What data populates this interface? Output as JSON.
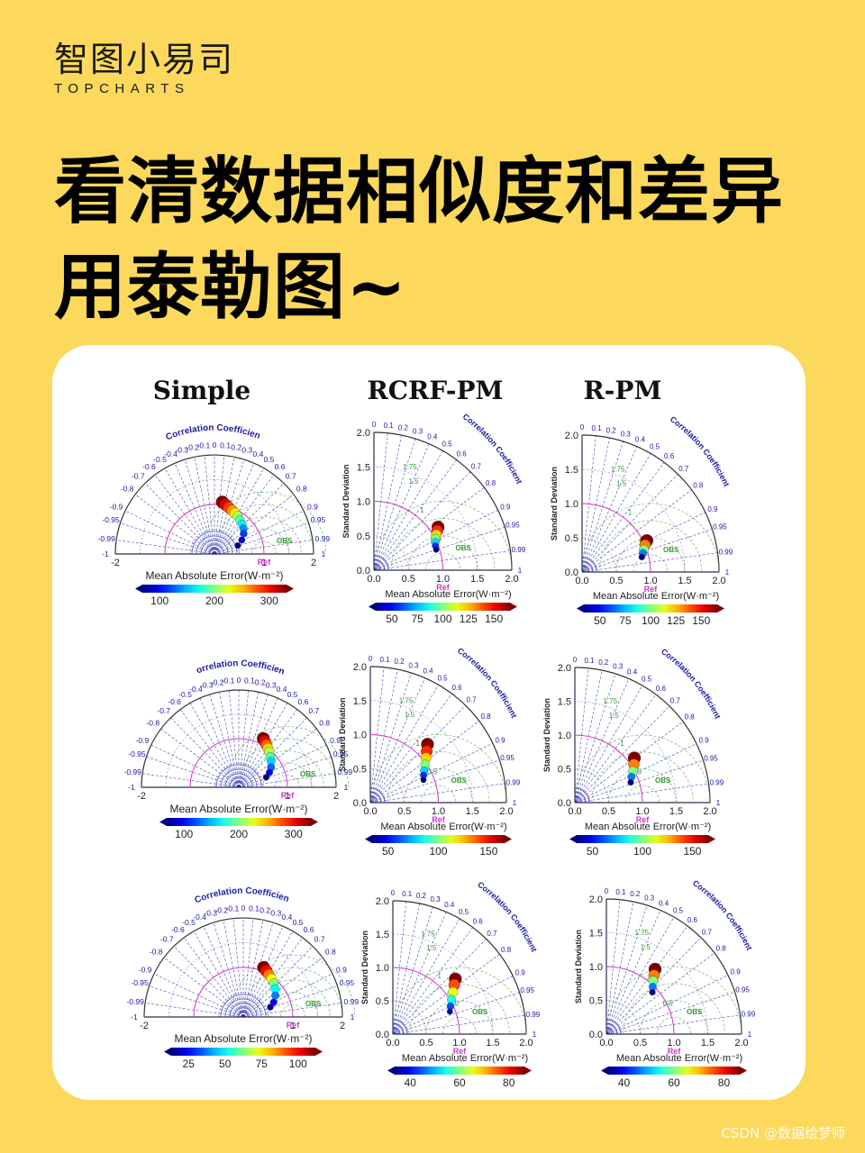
{
  "brand": {
    "cn": "智图小易司",
    "en": "TOPCHARTS"
  },
  "headline": {
    "line1": "看清数据相似度和差异",
    "line2": "用泰勒图~"
  },
  "watermark": "CSDN @数据绘梦师",
  "colors": {
    "background": "#fcd95c",
    "card": "#ffffff",
    "axis_blue": "#1a1aa6",
    "rms_green": "#2e9a2e",
    "ref_magenta": "#cc33cc"
  },
  "chart_data": {
    "type": "taylor",
    "column_titles": [
      "Simple",
      "RCRF-PM",
      "R-PM"
    ],
    "colorbar_label": "Mean Absolute Error(W·m⁻²)",
    "correlation_label": "Correlation Coefficient",
    "std_label": "Standard Deviation",
    "ref_label": "Ref",
    "obs_label": "OBS",
    "corr_ticks_full": [
      "-1",
      "-0.99",
      "-0.95",
      "-0.9",
      "-0.8",
      "-0.7",
      "-0.6",
      "-0.5",
      "-0.4",
      "-0.3",
      "-0.2",
      "-0.1",
      "0",
      "0.1",
      "0.2",
      "0.3",
      "0.4",
      "0.5",
      "0.6",
      "0.7",
      "0.8",
      "0.9",
      "0.95",
      "0.99",
      "1"
    ],
    "corr_ticks_quarter": [
      "0",
      "0.1",
      "0.2",
      "0.3",
      "0.4",
      "0.5",
      "0.6",
      "0.7",
      "0.8",
      "0.9",
      "0.95",
      "0.99",
      "1"
    ],
    "std_axis_full": {
      "ticks": [
        "-2",
        "1",
        "2"
      ],
      "range": [
        -2,
        2
      ]
    },
    "std_axis_quarter": {
      "ticks": [
        "0.0",
        "0.5",
        "1.0",
        "1.5",
        "2.0"
      ],
      "range": [
        0,
        2
      ]
    },
    "rms_labels": [
      "0.5",
      "1",
      "1.5",
      "1.75"
    ],
    "panels": [
      {
        "row": 1,
        "col": "Simple",
        "shape": "full",
        "colorbar_ticks": [
          "100",
          "200",
          "300"
        ],
        "points": [
          {
            "std": 1.06,
            "corr": 0.15
          },
          {
            "std": 1.02,
            "corr": 0.22
          },
          {
            "std": 0.98,
            "corr": 0.3
          },
          {
            "std": 0.95,
            "corr": 0.38
          },
          {
            "std": 0.92,
            "corr": 0.45
          },
          {
            "std": 0.9,
            "corr": 0.52
          },
          {
            "std": 0.86,
            "corr": 0.6
          },
          {
            "std": 0.82,
            "corr": 0.68
          },
          {
            "std": 0.78,
            "corr": 0.75
          },
          {
            "std": 0.72,
            "corr": 0.82
          },
          {
            "std": 0.62,
            "corr": 0.89
          },
          {
            "std": 0.5,
            "corr": 0.94
          }
        ]
      },
      {
        "row": 1,
        "col": "RCRF-PM",
        "shape": "quarter",
        "colorbar_ticks": [
          "50",
          "75",
          "100",
          "125",
          "150"
        ],
        "points": [
          {
            "std": 1.12,
            "corr": 0.83
          },
          {
            "std": 1.08,
            "corr": 0.85
          },
          {
            "std": 1.04,
            "corr": 0.87
          },
          {
            "std": 1.0,
            "corr": 0.89
          },
          {
            "std": 0.98,
            "corr": 0.91
          },
          {
            "std": 0.96,
            "corr": 0.93
          },
          {
            "std": 0.95,
            "corr": 0.95
          }
        ]
      },
      {
        "row": 1,
        "col": "R-PM",
        "shape": "quarter",
        "colorbar_ticks": [
          "50",
          "75",
          "100",
          "125",
          "150"
        ],
        "points": [
          {
            "std": 1.05,
            "corr": 0.9
          },
          {
            "std": 1.0,
            "corr": 0.92
          },
          {
            "std": 0.96,
            "corr": 0.94
          },
          {
            "std": 0.93,
            "corr": 0.955
          },
          {
            "std": 0.9,
            "corr": 0.97
          }
        ]
      },
      {
        "row": 2,
        "col": "Simple",
        "shape": "full",
        "colorbar_ticks": [
          "100",
          "200",
          "300"
        ],
        "points": [
          {
            "std": 1.12,
            "corr": 0.45
          },
          {
            "std": 1.08,
            "corr": 0.5
          },
          {
            "std": 1.04,
            "corr": 0.55
          },
          {
            "std": 1.0,
            "corr": 0.6
          },
          {
            "std": 0.96,
            "corr": 0.65
          },
          {
            "std": 0.9,
            "corr": 0.72
          },
          {
            "std": 0.85,
            "corr": 0.78
          },
          {
            "std": 0.78,
            "corr": 0.85
          },
          {
            "std": 0.7,
            "corr": 0.9
          },
          {
            "std": 0.6,
            "corr": 0.94
          }
        ]
      },
      {
        "row": 2,
        "col": "RCRF-PM",
        "shape": "quarter",
        "colorbar_ticks": [
          "50",
          "100",
          "150"
        ],
        "points": [
          {
            "std": 1.2,
            "corr": 0.7
          },
          {
            "std": 1.12,
            "corr": 0.74
          },
          {
            "std": 1.05,
            "corr": 0.78
          },
          {
            "std": 0.98,
            "corr": 0.82
          },
          {
            "std": 0.92,
            "corr": 0.86
          },
          {
            "std": 0.88,
            "corr": 0.89
          },
          {
            "std": 0.85,
            "corr": 0.92
          }
        ]
      },
      {
        "row": 2,
        "col": "R-PM",
        "shape": "quarter",
        "colorbar_ticks": [
          "50",
          "100",
          "150"
        ],
        "points": [
          {
            "std": 1.1,
            "corr": 0.8
          },
          {
            "std": 1.04,
            "corr": 0.84
          },
          {
            "std": 0.98,
            "corr": 0.88
          },
          {
            "std": 0.92,
            "corr": 0.91
          },
          {
            "std": 0.88,
            "corr": 0.94
          }
        ]
      },
      {
        "row": 3,
        "col": "Simple",
        "shape": "full",
        "colorbar_ticks": [
          "25",
          "50",
          "75",
          "100"
        ],
        "points": [
          {
            "std": 1.08,
            "corr": 0.38
          },
          {
            "std": 1.04,
            "corr": 0.45
          },
          {
            "std": 1.0,
            "corr": 0.52
          },
          {
            "std": 0.96,
            "corr": 0.6
          },
          {
            "std": 0.92,
            "corr": 0.67
          },
          {
            "std": 0.86,
            "corr": 0.75
          },
          {
            "std": 0.78,
            "corr": 0.83
          },
          {
            "std": 0.68,
            "corr": 0.9
          },
          {
            "std": 0.58,
            "corr": 0.94
          }
        ]
      },
      {
        "row": 3,
        "col": "RCRF-PM",
        "shape": "quarter",
        "colorbar_ticks": [
          "40",
          "60",
          "80"
        ],
        "points": [
          {
            "std": 1.25,
            "corr": 0.75
          },
          {
            "std": 1.18,
            "corr": 0.78
          },
          {
            "std": 1.1,
            "corr": 0.82
          },
          {
            "std": 1.02,
            "corr": 0.86
          },
          {
            "std": 0.96,
            "corr": 0.9
          },
          {
            "std": 0.92,
            "corr": 0.93
          }
        ]
      },
      {
        "row": 3,
        "col": "R-PM",
        "shape": "quarter",
        "colorbar_ticks": [
          "40",
          "60",
          "80"
        ],
        "points": [
          {
            "std": 1.2,
            "corr": 0.6
          },
          {
            "std": 1.12,
            "corr": 0.63
          },
          {
            "std": 1.05,
            "corr": 0.66
          },
          {
            "std": 0.98,
            "corr": 0.7
          },
          {
            "std": 0.92,
            "corr": 0.74
          }
        ]
      }
    ]
  }
}
